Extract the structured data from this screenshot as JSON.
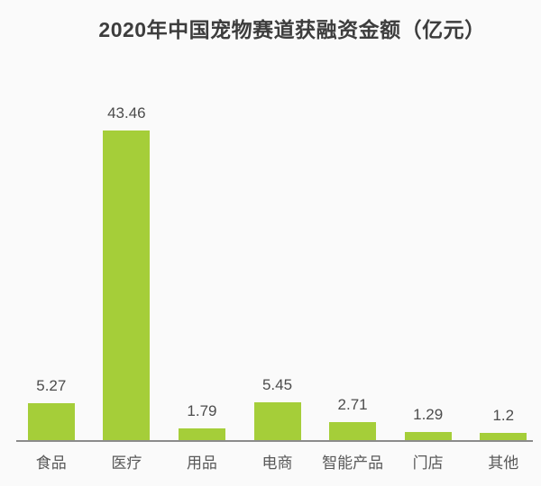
{
  "page": {
    "background_color": "#fafafa"
  },
  "header": {
    "title": "2020年中国宠物赛道获融资金额（亿元）",
    "title_color": "#3d3d3d"
  },
  "chart_data": {
    "type": "bar",
    "title": "2020年中国宠物赛道获融资金额（亿元）",
    "categories": [
      "食品",
      "医疗",
      "用品",
      "电商",
      "智能产品",
      "门店",
      "其他"
    ],
    "values": [
      5.27,
      43.46,
      1.79,
      5.45,
      2.71,
      1.29,
      1.2
    ],
    "value_labels": [
      "5.27",
      "43.46",
      "1.79",
      "5.45",
      "2.71",
      "1.29",
      "1.2"
    ],
    "xlabel": "",
    "ylabel": "",
    "ylim": [
      0,
      45
    ],
    "grid": false,
    "legend": false,
    "y_axis_visible": false,
    "bar_color": "#a5ce39",
    "axis_line_color": "#8b8b8b",
    "value_label_color": "#4c4c4c",
    "category_label_color": "#595959"
  }
}
